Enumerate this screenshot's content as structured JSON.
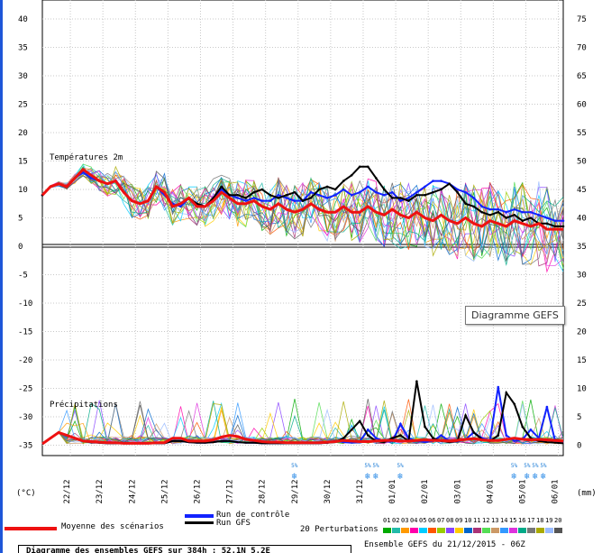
{
  "window": {
    "tooltip": "Diagramme GEFS"
  },
  "chart_data": {
    "type": "line",
    "title": "Diagramme des ensembles GEFS sur 384h : 52.1N 5.2E",
    "subtitle": "Ensemble GEFS du 21/12/2015 - 06Z",
    "panels": [
      {
        "label": "Températures 2m",
        "unit": "°C",
        "ylim": [
          -35,
          40
        ]
      },
      {
        "label": "Précipitations",
        "unit": "mm",
        "ylim": [
          0,
          75
        ]
      }
    ],
    "left_axis": {
      "unit": "(°C)",
      "ticks": [
        40,
        35,
        30,
        25,
        20,
        15,
        10,
        5,
        0,
        -5,
        -10,
        -15,
        -20,
        -25,
        -30,
        -35
      ]
    },
    "right_axis": {
      "unit": "(mm)",
      "ticks": [
        75,
        70,
        65,
        60,
        55,
        50,
        45,
        40,
        35,
        30,
        25,
        20,
        15,
        10,
        5,
        0
      ]
    },
    "x_ticks": [
      "22/12",
      "23/12",
      "24/12",
      "25/12",
      "26/12",
      "27/12",
      "28/12",
      "29/12",
      "30/12",
      "31/12",
      "01/01",
      "02/01",
      "03/01",
      "04/01",
      "05/01",
      "06/01"
    ],
    "x_hours": [
      0,
      384
    ],
    "snow_markers": [
      {
        "label": "5%",
        "day_offset": 7.75
      },
      {
        "label": "5%",
        "day_offset": 10.0
      },
      {
        "label": "5%",
        "day_offset": 10.25
      },
      {
        "label": "5%",
        "day_offset": 11.0
      },
      {
        "label": "5%",
        "day_offset": 14.5
      },
      {
        "label": "5%",
        "day_offset": 14.9
      },
      {
        "label": "5%",
        "day_offset": 15.15
      },
      {
        "label": "5%",
        "day_offset": 15.4
      }
    ],
    "series": [
      {
        "name": "Moyenne des scénarios",
        "color": "#ee1111",
        "temp": [
          9.0,
          10.5,
          11.0,
          10.5,
          12.0,
          13.5,
          12.5,
          11.5,
          11.0,
          11.5,
          9.5,
          8.0,
          7.5,
          8.0,
          10.5,
          9.5,
          7.0,
          7.5,
          8.5,
          7.0,
          7.0,
          8.0,
          9.5,
          8.5,
          7.5,
          7.5,
          8.0,
          7.0,
          6.5,
          7.5,
          6.5,
          6.0,
          6.5,
          7.5,
          6.5,
          6.0,
          6.0,
          7.0,
          6.0,
          6.0,
          7.0,
          6.0,
          5.5,
          6.5,
          5.5,
          5.0,
          6.0,
          5.0,
          4.5,
          5.5,
          4.5,
          4.0,
          5.0,
          4.0,
          3.5,
          4.5,
          4.0,
          3.5,
          4.5,
          4.0,
          3.5,
          4.0,
          3.0,
          3.0,
          3.0
        ],
        "precip": [
          0,
          1,
          2,
          1.5,
          1,
          0.5,
          0.4,
          0.3,
          0.2,
          0.2,
          0.1,
          0.1,
          0.1,
          0.1,
          0.2,
          0.2,
          1,
          1,
          0.5,
          0.5,
          0.5,
          0.7,
          1.2,
          1.5,
          1.3,
          0.8,
          0.6,
          0.4,
          0.3,
          0.3,
          0.2,
          0.2,
          0.2,
          0.2,
          0.2,
          0.3,
          0.4,
          0.6,
          0.5,
          0.4,
          0.4,
          0.5,
          0.6,
          0.6,
          0.5,
          0.5,
          0.6,
          0.7,
          0.6,
          0.6,
          0.5,
          0.6,
          0.8,
          0.9,
          0.7,
          0.6,
          0.6,
          0.8,
          1.0,
          0.8,
          0.7,
          0.8,
          0.7,
          0.6,
          0.5
        ]
      },
      {
        "name": "Run de contrôle",
        "color": "#1122ff",
        "temp": [
          9.0,
          10.5,
          11.0,
          10.5,
          12.0,
          13.0,
          12.0,
          11.5,
          11.0,
          11.5,
          9.5,
          8.0,
          7.5,
          8.0,
          10.5,
          9.0,
          7.5,
          7.0,
          8.5,
          7.5,
          7.0,
          8.5,
          10.0,
          9.0,
          8.5,
          8.0,
          8.5,
          8.0,
          8.0,
          9.0,
          8.5,
          8.0,
          8.0,
          9.5,
          9.0,
          8.5,
          9.0,
          10.0,
          9.0,
          9.5,
          10.5,
          9.5,
          9.0,
          9.5,
          8.0,
          8.5,
          9.5,
          10.5,
          11.5,
          11.5,
          11.0,
          10.0,
          9.5,
          8.5,
          7.0,
          6.5,
          6.5,
          6.0,
          6.5,
          6.0,
          6.0,
          5.5,
          5.0,
          4.5,
          4.5
        ],
        "precip": [
          0,
          1,
          2,
          1.5,
          1,
          0.5,
          0.3,
          0.2,
          0.1,
          0.1,
          0.1,
          0.1,
          0.1,
          0.1,
          0.1,
          0.1,
          0.5,
          0.5,
          0.3,
          0.2,
          0.2,
          0.3,
          0.5,
          0.5,
          0.3,
          0.2,
          0.2,
          0.1,
          0.1,
          0.1,
          0.1,
          0.1,
          0.1,
          0.1,
          0.1,
          0.2,
          0.5,
          0.3,
          0.2,
          0.4,
          2.5,
          1.0,
          0.5,
          0.4,
          3.5,
          1.0,
          0.5,
          0.3,
          0.5,
          1.5,
          0.5,
          0.4,
          0.8,
          2.0,
          1.0,
          0.6,
          10.0,
          1.5,
          0.5,
          0.8,
          2.5,
          1.0,
          6.5,
          0.5,
          0.3
        ]
      },
      {
        "name": "Run GFS",
        "color": "#000000",
        "temp": [
          9.0,
          10.5,
          11.0,
          10.5,
          12.0,
          13.5,
          12.5,
          11.5,
          11.0,
          11.5,
          9.5,
          8.0,
          7.5,
          8.0,
          10.5,
          9.5,
          7.0,
          7.5,
          8.5,
          7.5,
          7.0,
          8.5,
          10.5,
          9.0,
          9.0,
          8.5,
          9.5,
          10.0,
          9.0,
          8.5,
          9.0,
          9.5,
          8.0,
          8.5,
          10.0,
          10.5,
          10.0,
          11.5,
          12.5,
          14.0,
          14.0,
          12.0,
          10.0,
          8.5,
          8.5,
          8.0,
          9.0,
          9.0,
          9.5,
          10.0,
          11.0,
          9.5,
          7.5,
          7.0,
          6.0,
          5.5,
          6.0,
          5.0,
          5.5,
          4.5,
          5.0,
          4.0,
          4.0,
          3.5,
          3.5
        ],
        "precip": [
          0,
          1,
          2,
          1.5,
          1,
          0.5,
          0.3,
          0.2,
          0.1,
          0.1,
          0.1,
          0.1,
          0.1,
          0.1,
          0.1,
          0.1,
          0.5,
          0.5,
          0.3,
          0.2,
          0.2,
          0.3,
          0.5,
          0.5,
          0.3,
          0.2,
          0.2,
          0.1,
          0.1,
          0.1,
          0.1,
          0.1,
          0.1,
          0.1,
          0.1,
          0.2,
          0.3,
          1.0,
          2.5,
          4.0,
          1.5,
          0.5,
          0.3,
          1.0,
          1.5,
          0.5,
          11.0,
          3.0,
          1.0,
          0.5,
          0.3,
          0.5,
          5.0,
          2.0,
          0.8,
          0.5,
          1.5,
          9.0,
          7.0,
          3.0,
          1.0,
          0.5,
          0.3,
          0.2,
          0.1
        ]
      }
    ]
  },
  "legend": {
    "mean_label": "Moyenne des scénarios",
    "control_label": "Run de contrôle",
    "gfs_label": "Run GFS",
    "pert_label": "20 Perturbations",
    "pert_numbers": [
      "01",
      "02",
      "03",
      "04",
      "05",
      "06",
      "07",
      "08",
      "09",
      "10",
      "11",
      "12",
      "13",
      "14",
      "15",
      "16",
      "17",
      "18",
      "19",
      "20"
    ],
    "pert_colors": [
      "#00aa00",
      "#22bbaa",
      "#ff9900",
      "#ff00aa",
      "#00ccff",
      "#ff5500",
      "#99cc00",
      "#8844ff",
      "#ffcc00",
      "#0066cc",
      "#aa3377",
      "#55dd55",
      "#cc9966",
      "#3399ff",
      "#dd33dd",
      "#00aa88",
      "#777777",
      "#aaaa00",
      "#99bbff",
      "#555555"
    ],
    "footer_left": "Diagramme des ensembles GEFS sur 384h : 52.1N 5.2E",
    "footer_right": "Ensemble GEFS du 21/12/2015 - 06Z"
  }
}
